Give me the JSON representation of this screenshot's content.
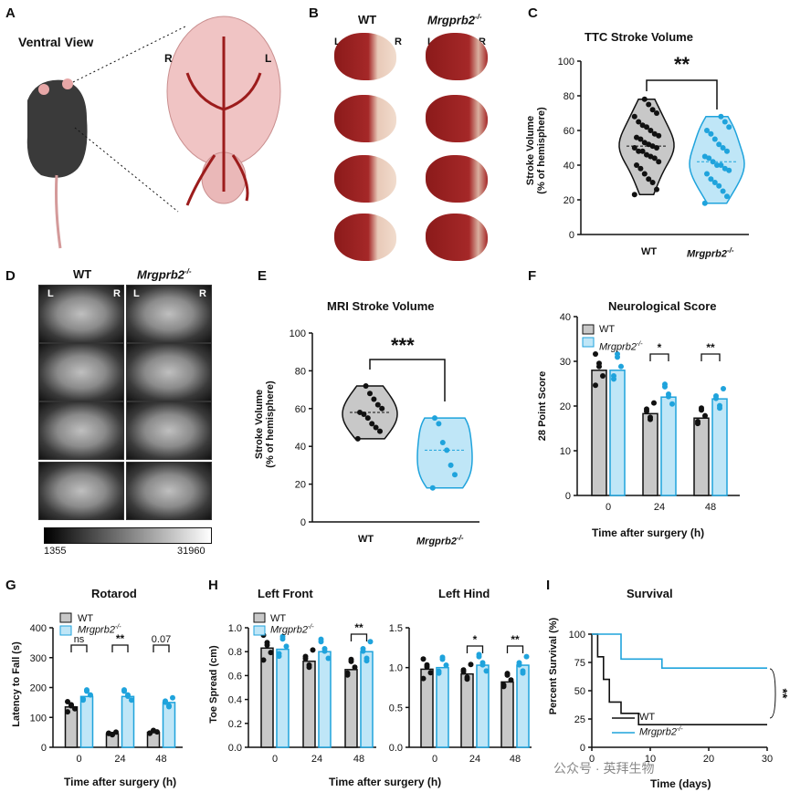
{
  "panels": {
    "A": {
      "label": "A",
      "title": "Ventral View",
      "side_R": "R",
      "side_L": "L"
    },
    "B": {
      "label": "B",
      "wt": "WT",
      "mut": "Mrgprb2",
      "mut_sup": "-/-",
      "L": "L",
      "R": "R"
    },
    "C": {
      "label": "C",
      "title": "TTC Stroke Volume",
      "ylabel1": "Stroke Volume",
      "ylabel2": "(% of hemisphere)",
      "sig": "**",
      "x1": "WT",
      "x2": "Mrgprb2",
      "x2sup": "-/-"
    },
    "D": {
      "label": "D",
      "wt": "WT",
      "mut": "Mrgprb2",
      "mut_sup": "-/-",
      "L": "L",
      "R": "R",
      "cbar_min": "1355",
      "cbar_max": "31960"
    },
    "E": {
      "label": "E",
      "title": "MRI Stroke Volume",
      "ylabel1": "Stroke Volume",
      "ylabel2": "(% of hemisphere)",
      "sig": "***",
      "x1": "WT",
      "x2": "Mrgprb2",
      "x2sup": "-/-"
    },
    "F": {
      "label": "F",
      "title": "Neurological Score",
      "ylabel": "28 Point Score",
      "xlabel": "Time after surgery (h)",
      "leg_wt": "WT",
      "leg_mut": "Mrgprb2",
      "leg_sup": "-/-"
    },
    "G": {
      "label": "G",
      "title": "Rotarod",
      "ylabel": "Latency to Fall (s)",
      "xlabel": "Time after surgery (h)",
      "leg_wt": "WT",
      "leg_mut": "Mrgprb2",
      "leg_sup": "-/-"
    },
    "H": {
      "label": "H",
      "title1": "Left Front",
      "title2": "Left Hind",
      "ylabel": "Toe Spread (cm)",
      "xlabel": "Time after surgery (h)",
      "leg_wt": "WT",
      "leg_mut": "Mrgprb2",
      "leg_sup": "-/-"
    },
    "I": {
      "label": "I",
      "title": "Survival",
      "ylabel": "Percent Survival (%)",
      "xlabel": "Time (days)",
      "leg_wt": "WT",
      "leg_mut": "Mrgprb2",
      "leg_sup": "-/-",
      "sig": "**"
    }
  },
  "watermark": "公众号 · 英拜生物",
  "colors": {
    "wt": "#111111",
    "mut": "#1fa3dc",
    "wt_fill": "#c8c8c8",
    "mut_fill": "#bfe6f7"
  },
  "chart_data": [
    {
      "id": "C",
      "type": "violin",
      "title": "TTC Stroke Volume",
      "ylabel": "Stroke Volume (% of hemisphere)",
      "ylim": [
        0,
        100
      ],
      "yticks": [
        0,
        20,
        40,
        60,
        80,
        100
      ],
      "categories": [
        "WT",
        "Mrgprb2-/-"
      ],
      "wt_points": [
        23,
        26,
        30,
        32,
        35,
        38,
        40,
        42,
        44,
        45,
        46,
        48,
        48,
        50,
        50,
        51,
        52,
        53,
        55,
        56,
        57,
        58,
        60,
        62,
        63,
        65,
        68,
        70,
        72,
        75,
        78
      ],
      "mut_points": [
        18,
        22,
        25,
        28,
        30,
        32,
        35,
        37,
        38,
        40,
        40,
        42,
        44,
        45,
        48,
        50,
        52,
        55,
        58,
        60,
        62,
        65,
        68
      ],
      "significance": "**"
    },
    {
      "id": "E",
      "type": "violin",
      "title": "MRI Stroke Volume",
      "ylabel": "Stroke Volume (% of hemisphere)",
      "ylim": [
        0,
        100
      ],
      "yticks": [
        0,
        20,
        40,
        60,
        80,
        100
      ],
      "categories": [
        "WT",
        "Mrgprb2-/-"
      ],
      "wt_points": [
        44,
        48,
        50,
        52,
        55,
        57,
        58,
        60,
        62,
        65,
        68,
        72
      ],
      "mut_points": [
        18,
        25,
        30,
        38,
        42,
        52,
        55
      ],
      "significance": "***"
    },
    {
      "id": "F",
      "type": "bar",
      "title": "Neurological Score",
      "ylabel": "28 Point Score",
      "xlabel": "Time after surgery (h)",
      "ylim": [
        0,
        40
      ],
      "yticks": [
        0,
        10,
        20,
        30,
        40
      ],
      "categories": [
        "0",
        "24",
        "48"
      ],
      "series": [
        {
          "name": "WT",
          "values": [
            28,
            18.3,
            17.3
          ]
        },
        {
          "name": "Mrgprb2-/-",
          "values": [
            28,
            22,
            21.6
          ]
        }
      ],
      "significance": [
        "",
        "*",
        "**"
      ]
    },
    {
      "id": "G",
      "type": "bar",
      "title": "Rotarod",
      "ylabel": "Latency to Fall (s)",
      "xlabel": "Time after surgery (h)",
      "ylim": [
        0,
        400
      ],
      "yticks": [
        0,
        100,
        200,
        300,
        400
      ],
      "categories": [
        "0",
        "24",
        "48"
      ],
      "series": [
        {
          "name": "WT",
          "values": [
            135,
            45,
            50
          ]
        },
        {
          "name": "Mrgprb2-/-",
          "values": [
            170,
            170,
            150
          ]
        }
      ],
      "significance": [
        "ns",
        "**",
        "0.07"
      ]
    },
    {
      "id": "H1",
      "type": "bar",
      "title": "Left Front",
      "ylabel": "Toe Spread (cm)",
      "ylim": [
        0,
        1.0
      ],
      "yticks": [
        "0.0",
        "0.2",
        "0.4",
        "0.6",
        "0.8",
        "1.0"
      ],
      "categories": [
        "0",
        "24",
        "48"
      ],
      "series": [
        {
          "name": "WT",
          "values": [
            0.83,
            0.72,
            0.65
          ]
        },
        {
          "name": "Mrgprb2-/-",
          "values": [
            0.82,
            0.8,
            0.8
          ]
        }
      ],
      "significance": [
        "",
        "",
        "**"
      ]
    },
    {
      "id": "H2",
      "type": "bar",
      "title": "Left Hind",
      "ylim": [
        0,
        1.5
      ],
      "yticks": [
        "0.0",
        "0.5",
        "1.0",
        "1.5"
      ],
      "categories": [
        "0",
        "24",
        "48"
      ],
      "series": [
        {
          "name": "WT",
          "values": [
            0.98,
            0.92,
            0.82
          ]
        },
        {
          "name": "Mrgprb2-/-",
          "values": [
            1.0,
            1.03,
            1.03
          ]
        }
      ],
      "significance": [
        "",
        "*",
        "**"
      ]
    },
    {
      "id": "I",
      "type": "line",
      "title": "Survival",
      "ylabel": "Percent Survival (%)",
      "xlabel": "Time (days)",
      "xlim": [
        0,
        30
      ],
      "ylim": [
        0,
        100
      ],
      "xticks": [
        0,
        10,
        20,
        30
      ],
      "yticks": [
        0,
        25,
        50,
        75,
        100
      ],
      "series": [
        {
          "name": "WT",
          "x": [
            0,
            1,
            1,
            2,
            2,
            3,
            3,
            5,
            5,
            8,
            8,
            12,
            12,
            30
          ],
          "y": [
            100,
            100,
            80,
            80,
            60,
            60,
            40,
            40,
            30,
            30,
            20,
            20,
            20,
            20
          ]
        },
        {
          "name": "Mrgprb2-/-",
          "x": [
            0,
            5,
            5,
            12,
            12,
            30
          ],
          "y": [
            100,
            100,
            78,
            78,
            70,
            70
          ]
        }
      ]
    }
  ]
}
